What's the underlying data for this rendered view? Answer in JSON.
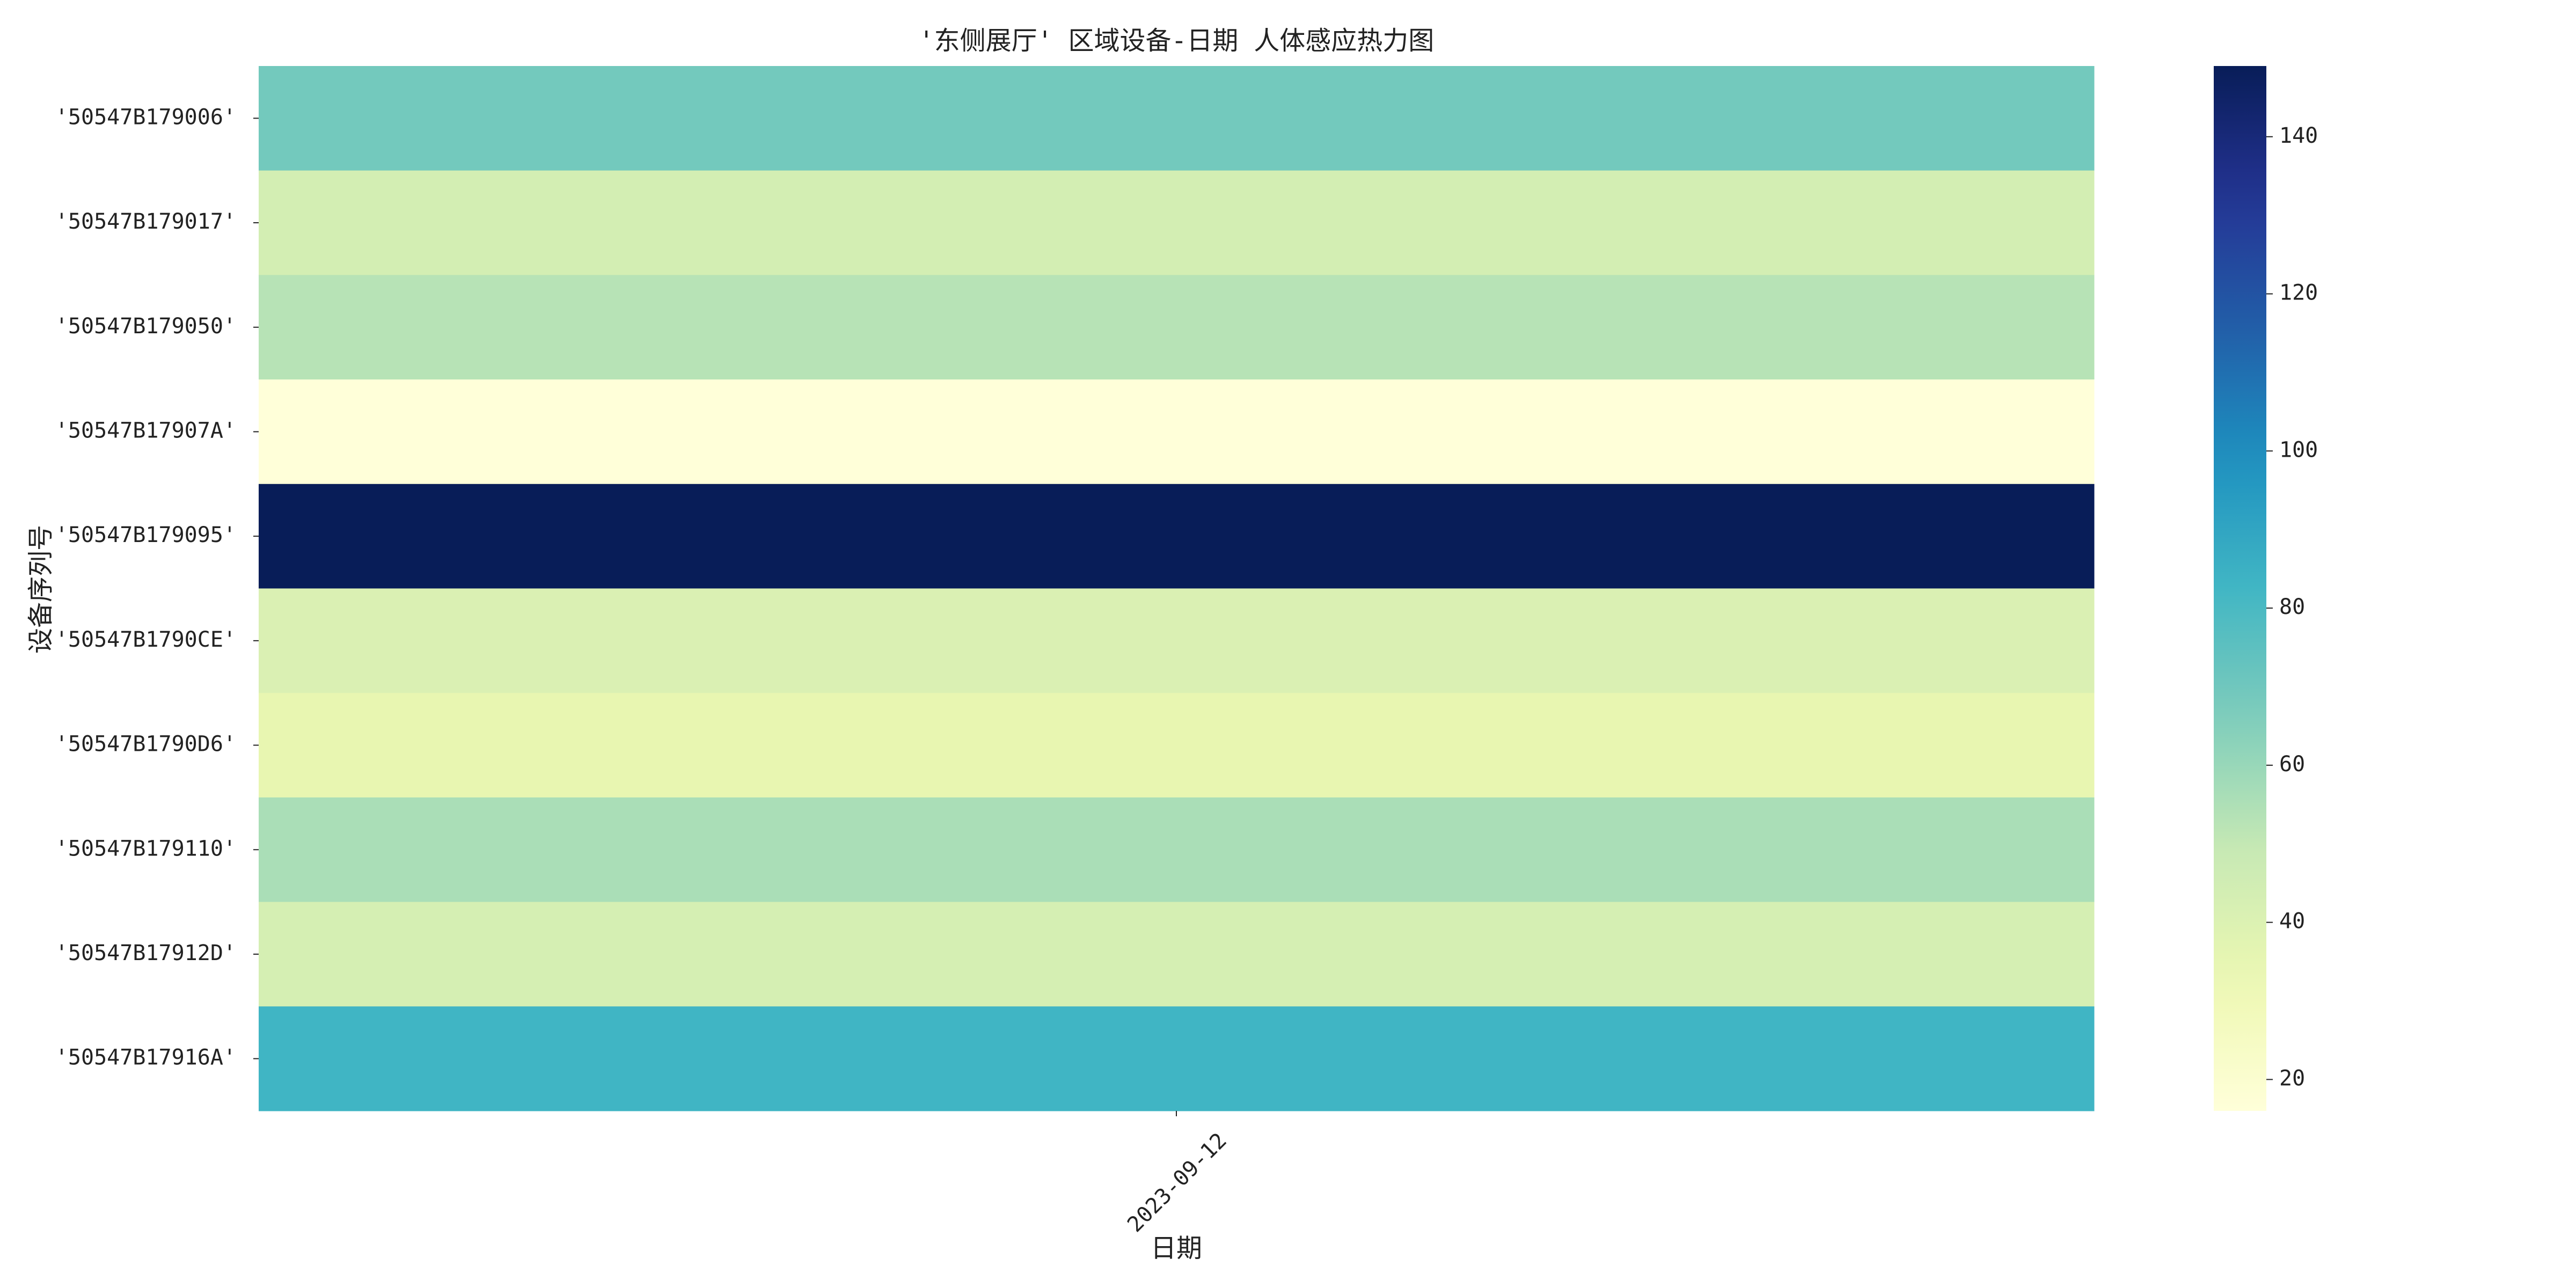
{
  "chart_data": {
    "type": "heatmap",
    "title": "'东侧展厅' 区域设备-日期 人体感应热力图",
    "xlabel": "日期",
    "ylabel": "设备序列号",
    "x_categories": [
      "2023-09-12"
    ],
    "y_categories": [
      "'50547B179006'",
      "'50547B179017'",
      "'50547B179050'",
      "'50547B17907A'",
      "'50547B179095'",
      "'50547B1790CE'",
      "'50547B1790D6'",
      "'50547B179110'",
      "'50547B17912D'",
      "'50547B17916A'"
    ],
    "values": [
      [
        69
      ],
      [
        44
      ],
      [
        53
      ],
      [
        16
      ],
      [
        149
      ],
      [
        41
      ],
      [
        35
      ],
      [
        56
      ],
      [
        43
      ],
      [
        83
      ]
    ],
    "colormap": "YlGnBu",
    "colorbar": {
      "range": [
        16,
        149
      ],
      "ticks": [
        "20",
        "40",
        "60",
        "80",
        "100",
        "120",
        "140"
      ]
    },
    "grid": false
  }
}
